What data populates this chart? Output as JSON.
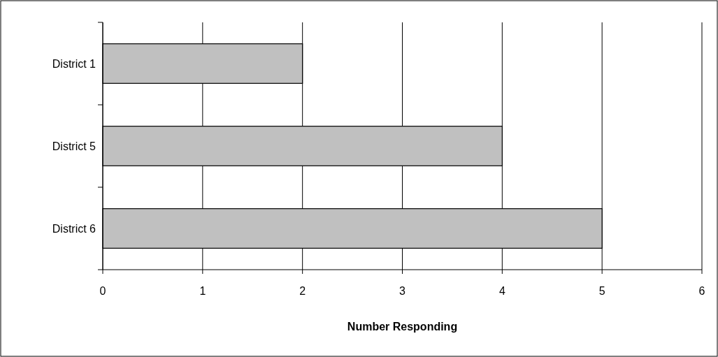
{
  "chart_data": {
    "type": "bar",
    "orientation": "horizontal",
    "xlabel": "Number Responding",
    "categories": [
      "District 1",
      "District 5",
      "District 6"
    ],
    "values": [
      2,
      4,
      5
    ],
    "color": "#c0c0c0",
    "xlim": [
      0,
      6
    ],
    "xticks": [
      0,
      1,
      2,
      3,
      4,
      5,
      6
    ],
    "grid": "x"
  }
}
